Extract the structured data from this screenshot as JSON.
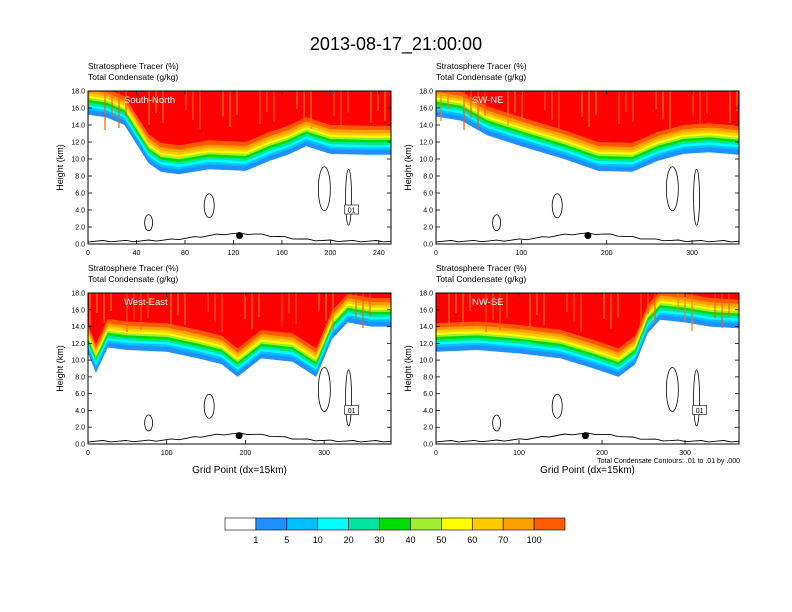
{
  "figure": {
    "title": "2013-08-17_21:00:00",
    "contour_note": "Total Condensate Contours: .01 to .01 by .000"
  },
  "colorbar": {
    "labels": [
      "1",
      "5",
      "10",
      "20",
      "30",
      "40",
      "50",
      "60",
      "70",
      "100"
    ],
    "colors": [
      "#ffffff",
      "#1e90ff",
      "#00bfff",
      "#00ffff",
      "#00e5a0",
      "#00dd00",
      "#a0ee30",
      "#ffff00",
      "#ffcc00",
      "#ffa000",
      "#ff5a00",
      "#ff0000"
    ]
  },
  "chart_data": [
    {
      "type": "heatmap",
      "panel": "South-North",
      "label_left_1": "Stratosphere Tracer   (%)",
      "label_left_2": "Total Condensate   (g/kg)",
      "ylabel": "Height (km)",
      "xlabel": "",
      "xlim": [
        0,
        250
      ],
      "ylim": [
        0,
        18
      ],
      "xticks": [
        "0",
        "40",
        "80",
        "120",
        "160",
        "200",
        "240"
      ],
      "yticks": [
        "0.0",
        "2.0",
        "4.0",
        "6.0",
        "8.0",
        "10.0",
        "12.0",
        "14.0",
        "16.0",
        "18.0"
      ],
      "contour_label": "01",
      "tracer_base_km": [
        [
          0,
          15.2
        ],
        [
          15,
          14.9
        ],
        [
          30,
          14.0
        ],
        [
          50,
          9.5
        ],
        [
          60,
          8.5
        ],
        [
          75,
          8.2
        ],
        [
          100,
          8.8
        ],
        [
          130,
          8.6
        ],
        [
          150,
          9.8
        ],
        [
          165,
          10.5
        ],
        [
          180,
          11.5
        ],
        [
          200,
          10.6
        ],
        [
          230,
          10.5
        ],
        [
          250,
          10.5
        ]
      ],
      "marker": {
        "x": 125,
        "y": 1.0
      }
    },
    {
      "type": "heatmap",
      "panel": "SW-NE",
      "label_left_1": "Stratosphere Tracer   (%)",
      "label_left_2": "Total Condensate   (g/kg)",
      "ylabel": "Height (km)",
      "xlabel": "",
      "xlim": [
        0,
        355
      ],
      "ylim": [
        0,
        18
      ],
      "xticks": [
        "0",
        "100",
        "200",
        "300"
      ],
      "yticks": [
        "0.0",
        "2.0",
        "4.0",
        "6.0",
        "8.0",
        "10.0",
        "12.0",
        "14.0",
        "16.0",
        "18.0"
      ],
      "contour_label": "",
      "tracer_base_km": [
        [
          0,
          15.0
        ],
        [
          30,
          14.5
        ],
        [
          60,
          12.8
        ],
        [
          100,
          11.5
        ],
        [
          150,
          10.0
        ],
        [
          190,
          8.6
        ],
        [
          230,
          8.5
        ],
        [
          260,
          9.8
        ],
        [
          290,
          10.6
        ],
        [
          320,
          10.8
        ],
        [
          355,
          10.5
        ]
      ],
      "marker": {
        "x": 178,
        "y": 1.0
      }
    },
    {
      "type": "heatmap",
      "panel": "West-East",
      "label_left_1": "Stratosphere Tracer   (%)",
      "label_left_2": "Total Condensate   (g/kg)",
      "ylabel": "Height (km)",
      "xlabel": "Grid Point (dx=15km)",
      "xlim": [
        0,
        385
      ],
      "ylim": [
        0,
        18
      ],
      "xticks": [
        "0",
        "100",
        "200",
        "300"
      ],
      "yticks": [
        "0.0",
        "2.0",
        "4.0",
        "6.0",
        "8.0",
        "10.0",
        "12.0",
        "14.0",
        "16.0",
        "18.0"
      ],
      "contour_label": "01",
      "tracer_base_km": [
        [
          0,
          10.8
        ],
        [
          10,
          8.5
        ],
        [
          25,
          11.5
        ],
        [
          50,
          11.2
        ],
        [
          100,
          11.0
        ],
        [
          140,
          10.2
        ],
        [
          170,
          9.5
        ],
        [
          190,
          8.0
        ],
        [
          220,
          10.2
        ],
        [
          260,
          9.8
        ],
        [
          290,
          8.0
        ],
        [
          310,
          12.5
        ],
        [
          330,
          14.5
        ],
        [
          360,
          14.0
        ],
        [
          385,
          14.0
        ]
      ],
      "marker": {
        "x": 192,
        "y": 1.0
      }
    },
    {
      "type": "heatmap",
      "panel": "NW-SE",
      "label_left_1": "Stratosphere Tracer   (%)",
      "label_left_2": "Total Condensate   (g/kg)",
      "ylabel": "Height (km)",
      "xlabel": "Grid Point (dx=15km)",
      "xlim": [
        0,
        365
      ],
      "ylim": [
        0,
        18
      ],
      "xticks": [
        "0",
        "100",
        "200",
        "300"
      ],
      "yticks": [
        "0.0",
        "2.0",
        "4.0",
        "6.0",
        "8.0",
        "10.0",
        "12.0",
        "14.0",
        "16.0",
        "18.0"
      ],
      "contour_label": "01",
      "tracer_base_km": [
        [
          0,
          11.0
        ],
        [
          50,
          11.2
        ],
        [
          100,
          10.8
        ],
        [
          150,
          10.2
        ],
        [
          190,
          9.0
        ],
        [
          220,
          8.0
        ],
        [
          240,
          9.5
        ],
        [
          255,
          13.2
        ],
        [
          270,
          14.8
        ],
        [
          300,
          14.5
        ],
        [
          330,
          14.0
        ],
        [
          365,
          13.8
        ]
      ],
      "marker": {
        "x": 180,
        "y": 1.0
      }
    }
  ]
}
